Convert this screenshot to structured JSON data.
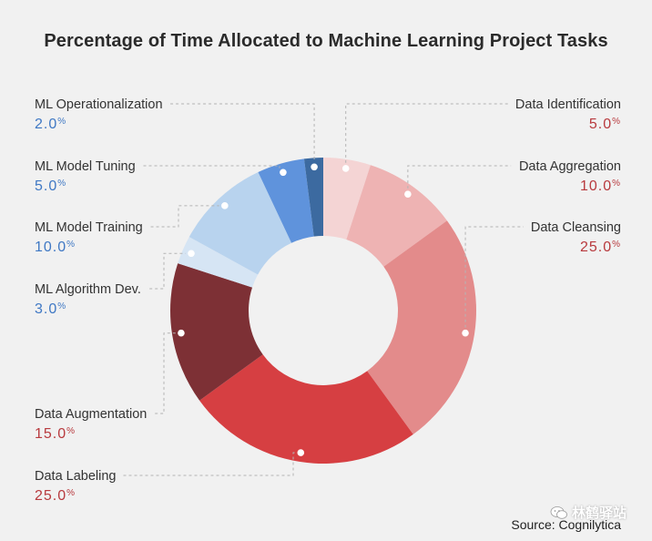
{
  "watermark": {
    "icon": "wechat-icon",
    "text": "林鹤驿站"
  },
  "source": "Source: Cognilytica",
  "chart_data": {
    "type": "pie",
    "donut": true,
    "title": "Percentage of Time Allocated to Machine Learning Project Tasks",
    "unit": "%",
    "slices": [
      {
        "label": "Data Identification",
        "value": 5.0,
        "display": "5.0",
        "color": "#f4d4d4",
        "text_color": "#b83a3e",
        "side": "right"
      },
      {
        "label": "Data Aggregation",
        "value": 10.0,
        "display": "10.0",
        "color": "#eeb3b3",
        "text_color": "#b83a3e",
        "side": "right"
      },
      {
        "label": "Data Cleansing",
        "value": 25.0,
        "display": "25.0",
        "color": "#e38b8b",
        "text_color": "#b83a3e",
        "side": "right"
      },
      {
        "label": "Data Labeling",
        "value": 25.0,
        "display": "25.0",
        "color": "#d63f42",
        "text_color": "#b83a3e",
        "side": "left"
      },
      {
        "label": "Data Augmentation",
        "value": 15.0,
        "display": "15.0",
        "color": "#7d3035",
        "text_color": "#b83a3e",
        "side": "left"
      },
      {
        "label": "ML Algorithm Dev.",
        "value": 3.0,
        "display": "3.0",
        "color": "#d6e5f4",
        "text_color": "#3f78c4",
        "side": "left"
      },
      {
        "label": "ML Model Training",
        "value": 10.0,
        "display": "10.0",
        "color": "#b8d3ee",
        "text_color": "#3f78c4",
        "side": "left"
      },
      {
        "label": "ML Model Tuning",
        "value": 5.0,
        "display": "5.0",
        "color": "#5f93dc",
        "text_color": "#3f78c4",
        "side": "left"
      },
      {
        "label": "ML Operationalization",
        "value": 2.0,
        "display": "2.0",
        "color": "#3c6aa0",
        "text_color": "#3f78c4",
        "side": "left"
      }
    ]
  }
}
